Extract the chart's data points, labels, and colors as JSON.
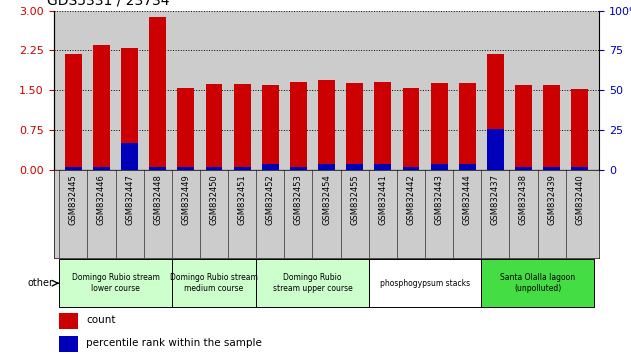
{
  "title": "GDS5331 / 23734",
  "categories": [
    "GSM832445",
    "GSM832446",
    "GSM832447",
    "GSM832448",
    "GSM832449",
    "GSM832450",
    "GSM832451",
    "GSM832452",
    "GSM832453",
    "GSM832454",
    "GSM832455",
    "GSM832441",
    "GSM832442",
    "GSM832443",
    "GSM832444",
    "GSM832437",
    "GSM832438",
    "GSM832439",
    "GSM832440"
  ],
  "red_values": [
    2.18,
    2.35,
    2.29,
    2.88,
    1.55,
    1.62,
    1.62,
    1.59,
    1.65,
    1.7,
    1.64,
    1.65,
    1.55,
    1.63,
    1.63,
    2.19,
    1.6,
    1.59,
    1.52
  ],
  "blue_values": [
    2,
    2,
    17,
    2,
    2,
    2,
    2,
    4,
    2,
    4,
    4,
    4,
    2,
    4,
    4,
    26,
    2,
    2,
    2
  ],
  "groups": [
    {
      "label": "Domingo Rubio stream\nlower course",
      "start": 0,
      "end": 4,
      "color": "#ccffcc"
    },
    {
      "label": "Domingo Rubio stream\nmedium course",
      "start": 4,
      "end": 7,
      "color": "#ccffcc"
    },
    {
      "label": "Domingo Rubio\nstream upper course",
      "start": 7,
      "end": 11,
      "color": "#ccffcc"
    },
    {
      "label": "phosphogypsum stacks",
      "start": 11,
      "end": 15,
      "color": "#ffffff"
    },
    {
      "label": "Santa Olalla lagoon\n(unpolluted)",
      "start": 15,
      "end": 19,
      "color": "#44dd44"
    }
  ],
  "ylim_left": [
    0,
    3
  ],
  "ylim_right": [
    0,
    100
  ],
  "yticks_left": [
    0,
    0.75,
    1.5,
    2.25,
    3
  ],
  "yticks_right": [
    0,
    25,
    50,
    75,
    100
  ],
  "red_color": "#cc0000",
  "blue_color": "#0000bb",
  "bg_color": "#cccccc",
  "tick_label_bg": "#cccccc",
  "left_tick_color": "#cc0000",
  "right_tick_color": "#0000bb",
  "other_label": "other"
}
